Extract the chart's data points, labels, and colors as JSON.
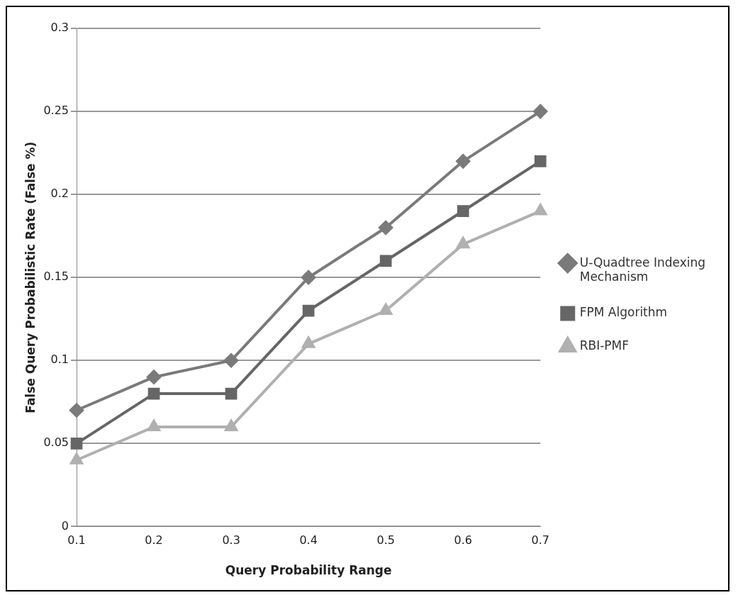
{
  "chart_data": {
    "type": "line",
    "xlabel": "Query Probability Range",
    "ylabel": "False Query Probabilistic Rate (False %)",
    "categories": [
      "0.1",
      "0.2",
      "0.3",
      "0.4",
      "0.5",
      "0.6",
      "0.7"
    ],
    "series": [
      {
        "name": "U-Quadtree Indexing Mechanism",
        "color": "#7a7a7a",
        "marker": "diamond",
        "values": [
          0.07,
          0.09,
          0.1,
          0.15,
          0.18,
          0.22,
          0.25
        ]
      },
      {
        "name": "FPM Algorithm",
        "color": "#666666",
        "marker": "square",
        "values": [
          0.05,
          0.08,
          0.08,
          0.13,
          0.16,
          0.19,
          0.22
        ]
      },
      {
        "name": "RBI-PMF",
        "color": "#b0b0b0",
        "marker": "triangle",
        "values": [
          0.04,
          0.06,
          0.06,
          0.11,
          0.13,
          0.17,
          0.19
        ]
      }
    ],
    "ylim": [
      0,
      0.3
    ],
    "yticks": [
      0,
      0.05,
      0.1,
      0.15,
      0.2,
      0.25,
      0.3
    ],
    "grid": "y",
    "legend": "right",
    "line_style": "solid"
  }
}
